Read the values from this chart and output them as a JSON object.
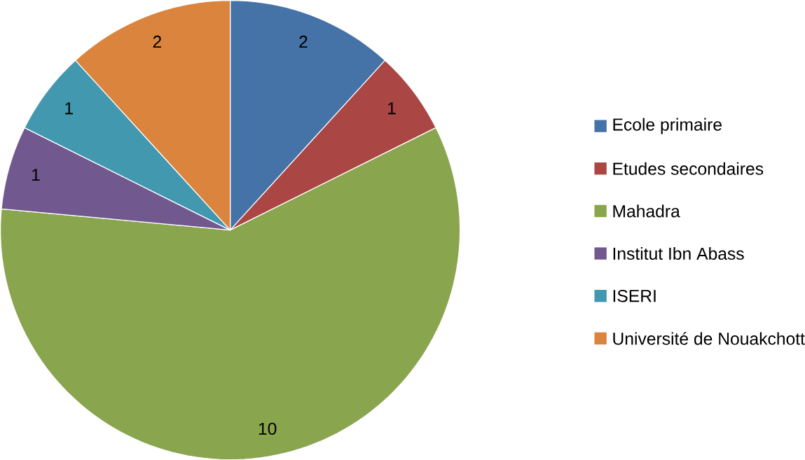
{
  "chart_data": {
    "type": "pie",
    "categories": [
      "Ecole primaire",
      "Etudes secondaires",
      "Mahadra",
      "Institut Ibn Abass",
      "ISERI",
      "Université de Nouakchott"
    ],
    "values": [
      2,
      1,
      10,
      1,
      1,
      2
    ],
    "colors": [
      "#4572a7",
      "#aa4643",
      "#89a54e",
      "#71588f",
      "#4198af",
      "#db843d"
    ],
    "data_labels": true,
    "legend": "right"
  }
}
